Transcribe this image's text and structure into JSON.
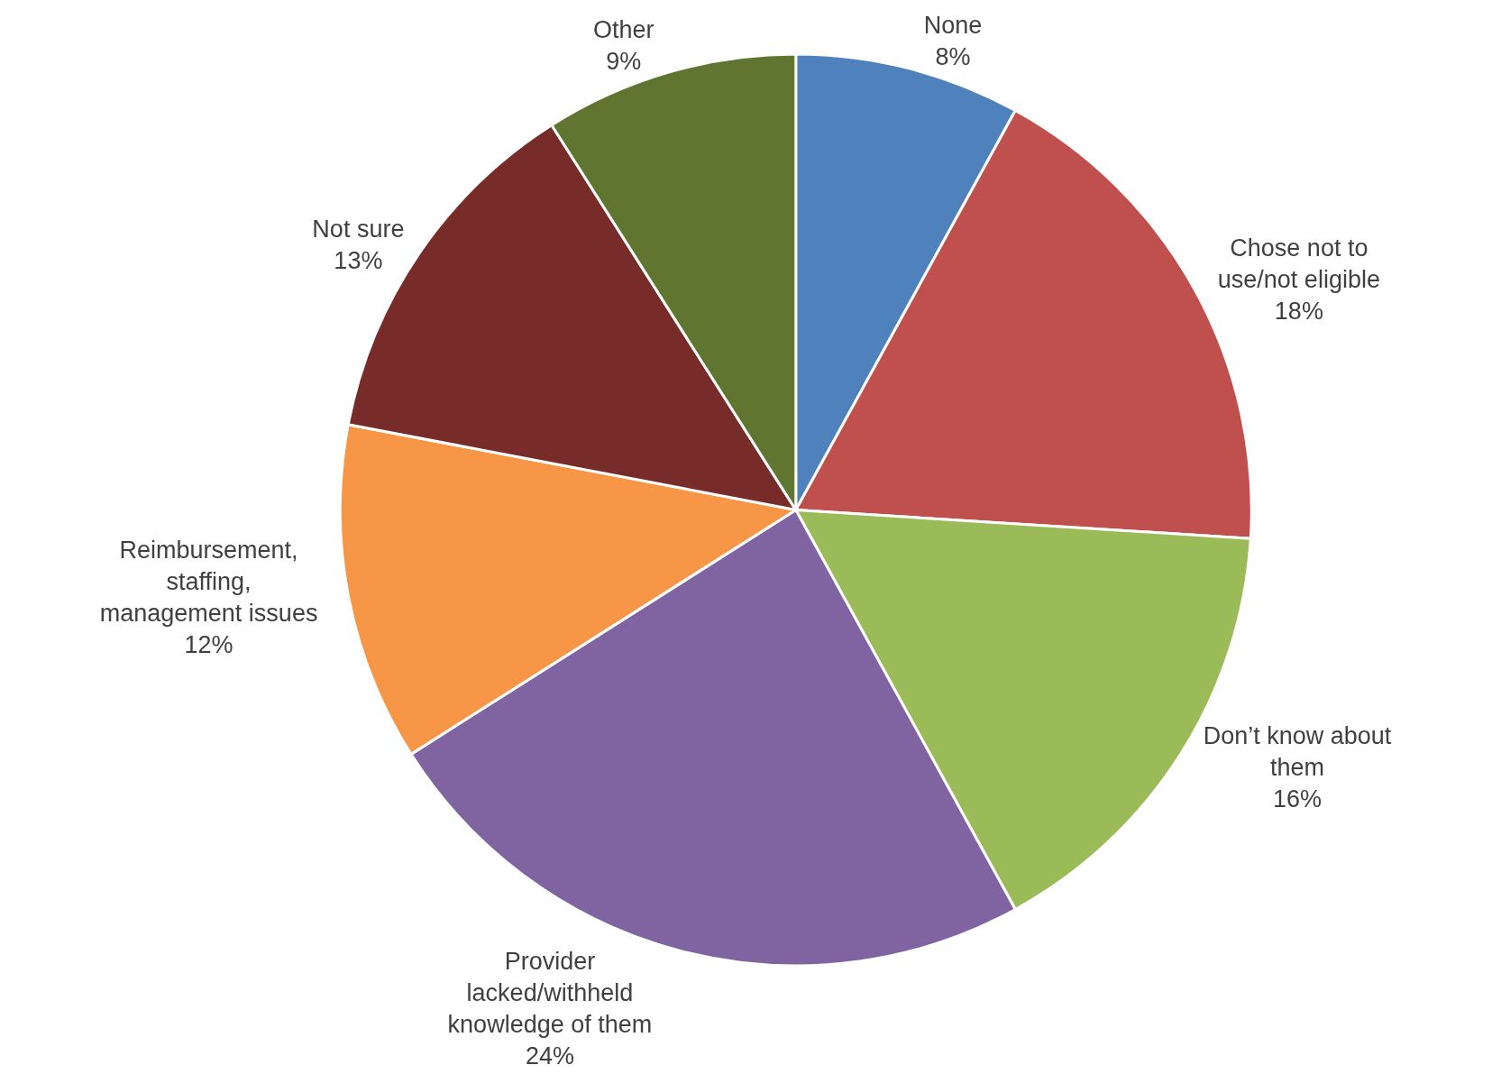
{
  "chart_data": {
    "type": "pie",
    "categories": [
      "None",
      "Chose not to\nuse/not eligible",
      "Don’t know about\nthem",
      "Provider\nlacked/withheld\nknowledge of them",
      "Reimbursement,\nstaffing,\nmanagement issues",
      "Not sure",
      "Other"
    ],
    "values": [
      8,
      18,
      16,
      24,
      12,
      13,
      9
    ],
    "value_labels": [
      "8%",
      "18%",
      "16%",
      "24%",
      "12%",
      "13%",
      "9%"
    ],
    "colors": [
      "#4f81bd",
      "#c0504d",
      "#9bbb59",
      "#8064a2",
      "#f79646",
      "#772c2a",
      "#5f7530"
    ],
    "legend": false
  }
}
